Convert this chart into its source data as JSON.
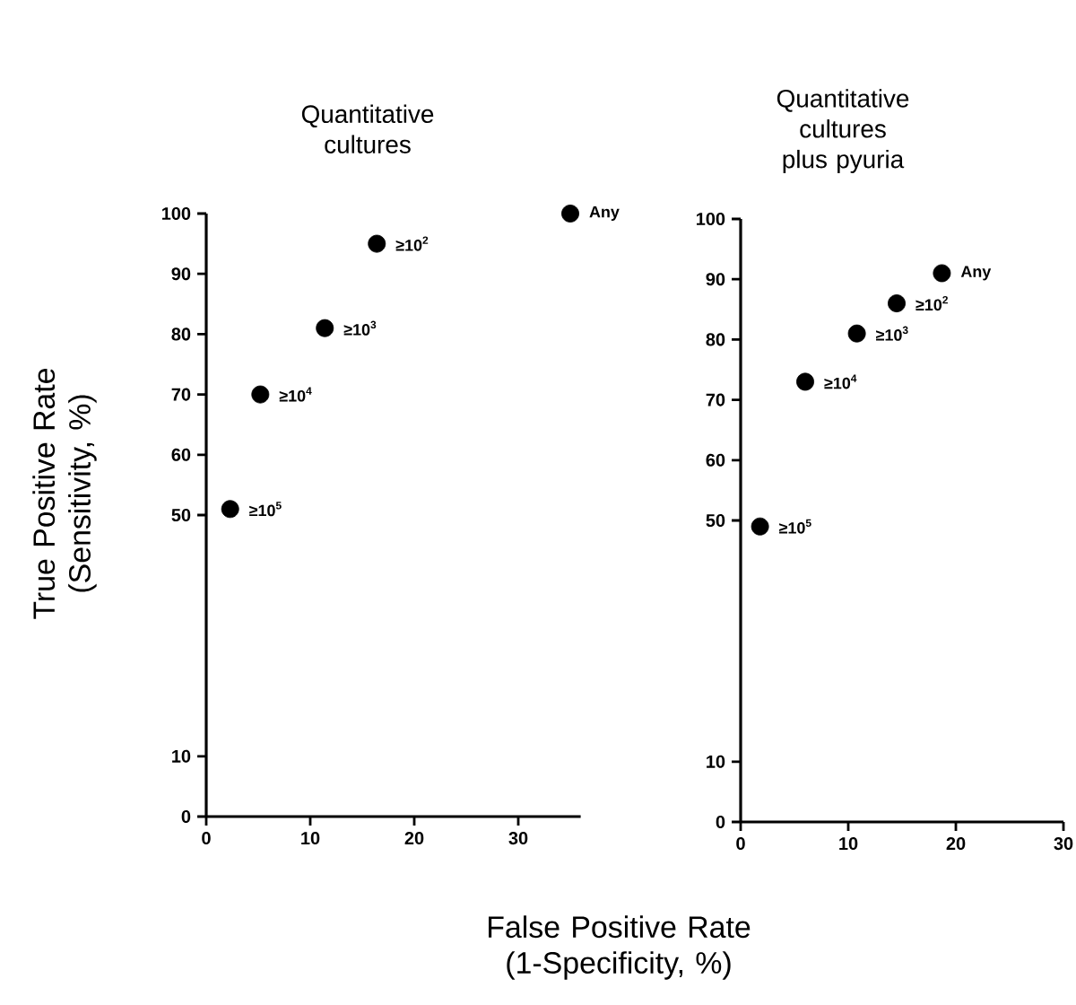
{
  "chart_data": [
    {
      "type": "scatter",
      "title": "Quantitative cultures",
      "xlabel": "False Positive Rate (1-Specificity, %)",
      "ylabel": "True Positive Rate (Sensitivity, %)",
      "x": [
        2.3,
        5.2,
        11.4,
        16.4,
        35
      ],
      "values": [
        51,
        70,
        81,
        95,
        100
      ],
      "color": "#000000",
      "marker": "circle",
      "xlim": [
        0,
        36
      ],
      "xticks": [
        0,
        10,
        20,
        30
      ],
      "ylim": [
        0,
        100
      ],
      "yticks": [
        0,
        10,
        50,
        60,
        70,
        80,
        90,
        100
      ],
      "annotations": [
        {
          "text": "≥10$^{5}$",
          "x": 2.3,
          "y": 51
        },
        {
          "text": "≥10$^{4}$",
          "x": 5.2,
          "y": 70
        },
        {
          "text": "≥10$^{3}$",
          "x": 11.4,
          "y": 81
        },
        {
          "text": "≥10$^{2}$",
          "x": 16.4,
          "y": 95
        },
        {
          "text": "Any",
          "x": 35,
          "y": 100
        }
      ]
    },
    {
      "type": "scatter",
      "title": "Quantitative cultures plus pyuria",
      "x": [
        1.8,
        6,
        10.8,
        14.5,
        18.7
      ],
      "values": [
        49,
        73,
        81,
        86,
        91
      ],
      "color": "#000000",
      "marker": "circle",
      "xlim": [
        0,
        30
      ],
      "xticks": [
        0,
        10,
        20,
        30
      ],
      "ylim": [
        0,
        100
      ],
      "yticks": [
        0,
        10,
        50,
        60,
        70,
        80,
        90,
        100
      ],
      "annotations": [
        {
          "text": "≥10$^{5}$",
          "x": 1.8,
          "y": 49
        },
        {
          "text": "≥10$^{4}$",
          "x": 6,
          "y": 73
        },
        {
          "text": "≥10$^{3}$",
          "x": 10.8,
          "y": 81
        },
        {
          "text": "≥10$^{2}$",
          "x": 14.5,
          "y": 86
        },
        {
          "text": "Any",
          "x": 18.7,
          "y": 91
        }
      ]
    }
  ]
}
